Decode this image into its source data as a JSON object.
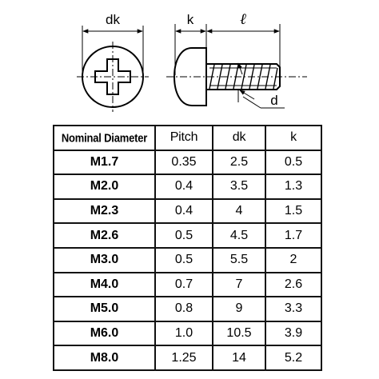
{
  "drawing": {
    "labels": {
      "dk": "dk",
      "k": "k",
      "l": "ℓ",
      "d": "d"
    }
  },
  "table": {
    "headers": [
      "Nominal Diameter",
      "Pitch",
      "dk",
      "k"
    ],
    "rows": [
      [
        "M1.7",
        "0.35",
        "2.5",
        "0.5"
      ],
      [
        "M2.0",
        "0.4",
        "3.5",
        "1.3"
      ],
      [
        "M2.3",
        "0.4",
        "4",
        "1.5"
      ],
      [
        "M2.6",
        "0.5",
        "4.5",
        "1.7"
      ],
      [
        "M3.0",
        "0.5",
        "5.5",
        "2"
      ],
      [
        "M4.0",
        "0.7",
        "7",
        "2.6"
      ],
      [
        "M5.0",
        "0.8",
        "9",
        "3.3"
      ],
      [
        "M6.0",
        "1.0",
        "10.5",
        "3.9"
      ],
      [
        "M8.0",
        "1.25",
        "14",
        "5.2"
      ]
    ]
  }
}
